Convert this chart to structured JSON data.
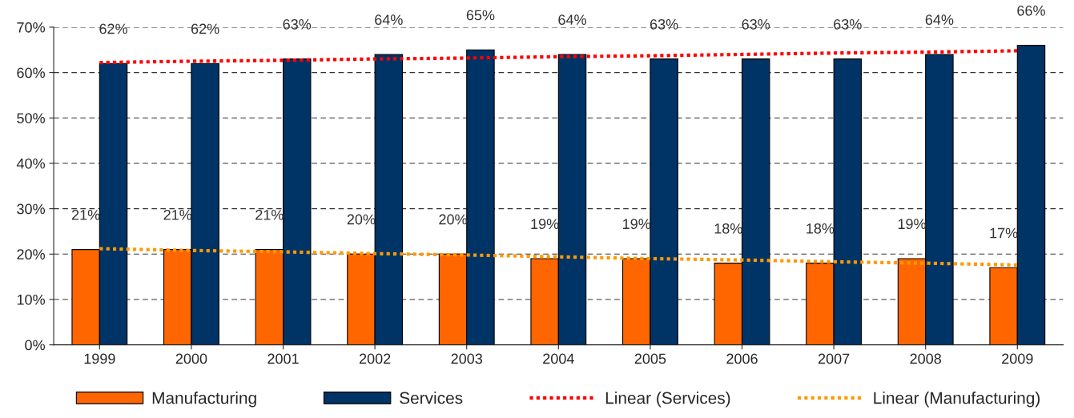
{
  "chart_data": {
    "type": "bar",
    "categories": [
      "1999",
      "2000",
      "2001",
      "2002",
      "2003",
      "2004",
      "2005",
      "2006",
      "2007",
      "2008",
      "2009"
    ],
    "series": [
      {
        "name": "Manufacturing",
        "color": "#ff6600",
        "values": [
          21,
          21,
          21,
          20,
          20,
          19,
          19,
          18,
          18,
          19,
          17
        ],
        "value_labels": [
          "21%",
          "21%",
          "21%",
          "20%",
          "20%",
          "19%",
          "19%",
          "18%",
          "18%",
          "19%",
          "17%"
        ]
      },
      {
        "name": "Services",
        "color": "#003366",
        "values": [
          62,
          62,
          63,
          64,
          65,
          64,
          63,
          63,
          63,
          64,
          66
        ],
        "value_labels": [
          "62%",
          "62%",
          "63%",
          "64%",
          "65%",
          "64%",
          "63%",
          "63%",
          "63%",
          "64%",
          "66%"
        ]
      },
      {
        "name": "Linear (Services)",
        "type": "line",
        "line_style": "dashed",
        "color": "#ff0000",
        "values": [
          62.2,
          62.5,
          62.7,
          63.0,
          63.2,
          63.5,
          63.7,
          64.0,
          64.3,
          64.5,
          64.8
        ]
      },
      {
        "name": "Linear (Manufacturing)",
        "type": "line",
        "line_style": "dashed",
        "color": "#ff9900",
        "values": [
          21.2,
          20.8,
          20.5,
          20.1,
          19.8,
          19.4,
          19.0,
          18.7,
          18.3,
          18.0,
          17.6
        ]
      }
    ],
    "ylim": [
      0,
      70
    ],
    "yticks": [
      {
        "value": 0,
        "label": "0%"
      },
      {
        "value": 10,
        "label": "10%"
      },
      {
        "value": 20,
        "label": "20%"
      },
      {
        "value": 30,
        "label": "30%"
      },
      {
        "value": 40,
        "label": "40%"
      },
      {
        "value": 50,
        "label": "50%"
      },
      {
        "value": 60,
        "label": "60%"
      },
      {
        "value": 70,
        "label": "70%"
      }
    ],
    "grid": "y",
    "legend": "bottom"
  }
}
